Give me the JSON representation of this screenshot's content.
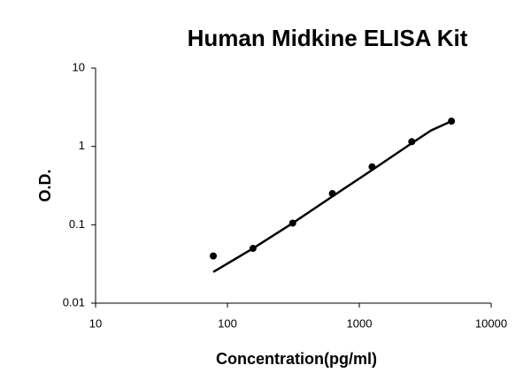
{
  "chart_data": {
    "type": "scatter",
    "title": "Human Midkine ELISA Kit",
    "x_label": "Concentration(pg/ml)",
    "y_label": "O.D.",
    "series": [
      {
        "color": "#000000",
        "mode": "markers",
        "x": [
          78.125,
          156.25,
          312.5,
          625,
          1250,
          2500,
          5000
        ],
        "values": [
          0.04,
          0.05,
          0.105,
          0.25,
          0.55,
          1.15,
          2.1
        ]
      },
      {
        "color": "#000000",
        "mode": "line",
        "x": [
          78.125,
          156.25,
          312.5,
          625,
          1250,
          2500,
          3500,
          5000
        ],
        "values": [
          0.025,
          0.05,
          0.105,
          0.23,
          0.5,
          1.1,
          1.6,
          2.1
        ]
      }
    ],
    "xlim": [
      10,
      10000
    ],
    "xticks": [
      10,
      100,
      1000,
      10000
    ],
    "ylim": [
      0.01,
      10
    ],
    "yticks": [
      0.01,
      0.1,
      1,
      10
    ],
    "xscale": "log",
    "yscale": "log",
    "grid": false
  }
}
